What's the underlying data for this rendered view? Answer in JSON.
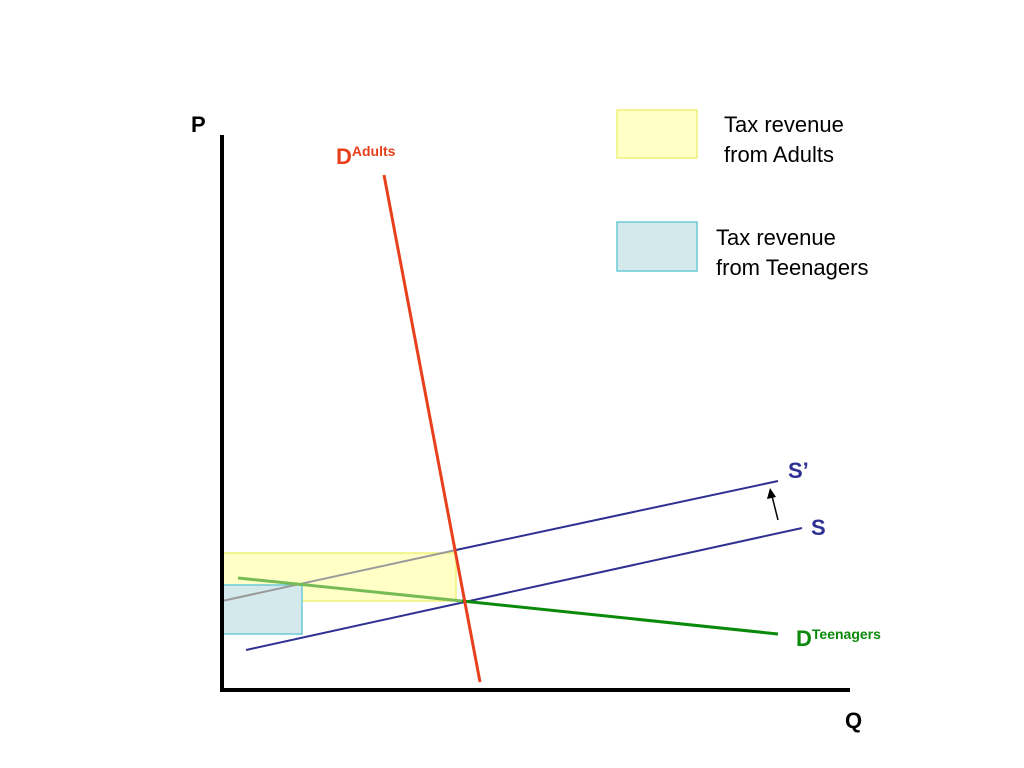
{
  "axes": {
    "y_label": "P",
    "x_label": "Q"
  },
  "curves": {
    "demand_adults": {
      "label_main": "D",
      "label_sup": "Adults",
      "color": "#e8401c"
    },
    "demand_teenagers": {
      "label_main": "D",
      "label_sup": "Teenagers",
      "color": "#0a8a0a"
    },
    "supply": {
      "label": "S",
      "color": "#2e3192"
    },
    "supply_taxed": {
      "label": "S’",
      "color": "#2e3192"
    }
  },
  "legend": {
    "adults": {
      "line1": "Tax revenue",
      "line2": "from Adults",
      "fill": "#ffffc6",
      "stroke": "#f0f07a"
    },
    "teenagers": {
      "line1": "Tax revenue",
      "line2": "from Teenagers",
      "fill": "#d3e9ec",
      "stroke": "#6cc9d6"
    }
  }
}
